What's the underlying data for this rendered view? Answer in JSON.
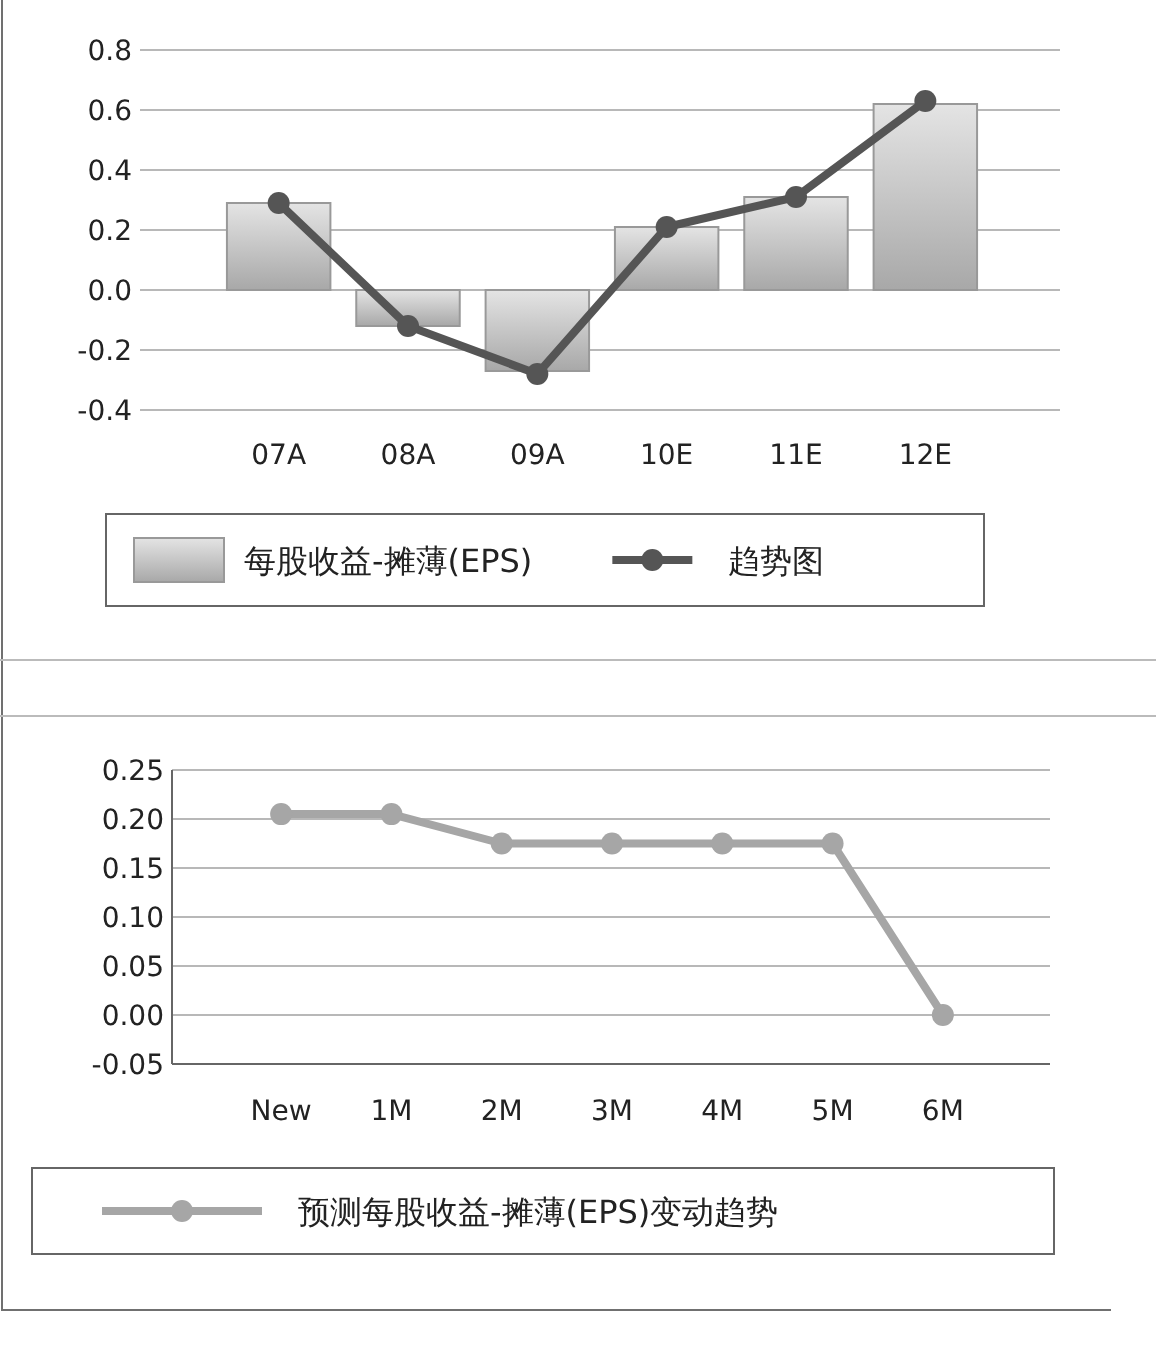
{
  "chart_data": [
    {
      "type": "bar",
      "categories": [
        "07A",
        "08A",
        "09A",
        "10E",
        "11E",
        "12E"
      ],
      "series": [
        {
          "name": "每股收益-摊薄(EPS)",
          "type": "bar",
          "color": "#a8a8a8",
          "values": [
            0.29,
            -0.12,
            -0.27,
            0.21,
            0.31,
            0.62
          ]
        },
        {
          "name": "趋势图",
          "type": "line",
          "color": "#555555",
          "marker": "circle",
          "values": [
            0.29,
            -0.12,
            -0.28,
            0.21,
            0.31,
            0.63
          ]
        }
      ],
      "ylim": [
        -0.4,
        0.8
      ],
      "yticks": [
        {
          "value": -0.4,
          "label": "-0.4"
        },
        {
          "value": -0.2,
          "label": "-0.2"
        },
        {
          "value": 0,
          "label": "0.0"
        },
        {
          "value": 0.2,
          "label": "0.2"
        },
        {
          "value": 0.4,
          "label": "0.4"
        },
        {
          "value": 0.6,
          "label": "0.6"
        },
        {
          "value": 0.8,
          "label": "0.8"
        }
      ],
      "grid": "y",
      "legend": "bottom"
    },
    {
      "type": "line",
      "categories": [
        "New",
        "1M",
        "2M",
        "3M",
        "4M",
        "5M",
        "6M"
      ],
      "series": [
        {
          "name": "预测每股收益-摊薄(EPS)变动趋势",
          "color": "#a6a6a6",
          "values": [
            0.205,
            0.205,
            0.175,
            0.175,
            0.175,
            0.175,
            0.0
          ]
        }
      ],
      "marker": "circle",
      "ylim": [
        -0.05,
        0.25
      ],
      "yticks": [
        {
          "value": -0.05,
          "label": "-0.05"
        },
        {
          "value": 0,
          "label": "0.00"
        },
        {
          "value": 0.05,
          "label": "0.05"
        },
        {
          "value": 0.1,
          "label": "0.10"
        },
        {
          "value": 0.15,
          "label": "0.15"
        },
        {
          "value": 0.2,
          "label": "0.20"
        },
        {
          "value": 0.25,
          "label": "0.25"
        }
      ],
      "grid": "y",
      "legend": "bottom"
    }
  ]
}
